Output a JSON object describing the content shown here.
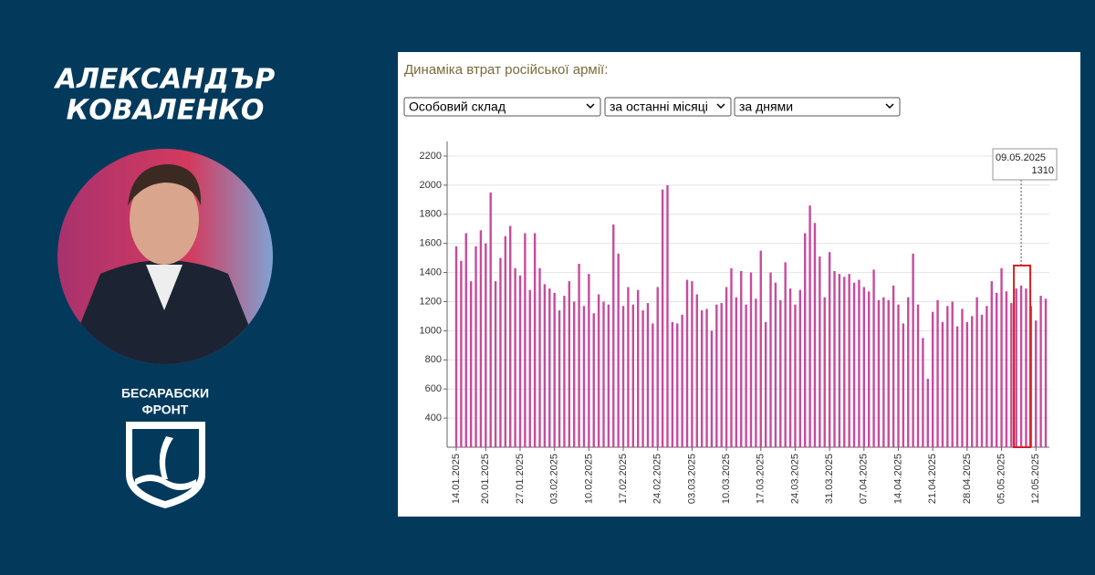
{
  "author": {
    "line1": "АЛЕКСАНДЪР",
    "line2": "КОВАЛЕНКО"
  },
  "logo": {
    "line1": "БЕСАРАБСКИ",
    "line2": "ФРОНТ"
  },
  "chart_data": {
    "type": "bar",
    "title": "Динаміка втрат російської армії:",
    "controls": [
      "Особовий склад",
      "за останні місяці",
      "за днями"
    ],
    "categories": [
      "14.01.2025",
      null,
      null,
      null,
      null,
      null,
      "20.01.2025",
      null,
      null,
      null,
      null,
      null,
      null,
      "27.01.2025",
      null,
      null,
      null,
      null,
      null,
      null,
      "03.02.2025",
      null,
      null,
      null,
      null,
      null,
      null,
      "10.02.2025",
      null,
      null,
      null,
      null,
      null,
      null,
      "17.02.2025",
      null,
      null,
      null,
      null,
      null,
      null,
      "24.02.2025",
      null,
      null,
      null,
      null,
      null,
      null,
      "03.03.2025",
      null,
      null,
      null,
      null,
      null,
      null,
      "10.03.2025",
      null,
      null,
      null,
      null,
      null,
      null,
      "17.03.2025",
      null,
      null,
      null,
      null,
      null,
      null,
      "24.03.2025",
      null,
      null,
      null,
      null,
      null,
      null,
      "31.03.2025",
      null,
      null,
      null,
      null,
      null,
      null,
      "07.04.2025",
      null,
      null,
      null,
      null,
      null,
      null,
      "14.04.2025",
      null,
      null,
      null,
      null,
      null,
      null,
      "21.04.2025",
      null,
      null,
      null,
      null,
      null,
      null,
      "28.04.2025",
      null,
      null,
      null,
      null,
      null,
      null,
      "05.05.2025",
      null,
      null,
      null,
      null,
      null,
      null,
      "12.05.2025",
      null,
      null
    ],
    "values": [
      1580,
      1480,
      1670,
      1340,
      1580,
      1690,
      1600,
      1950,
      1340,
      1500,
      1650,
      1720,
      1430,
      1380,
      1670,
      1280,
      1670,
      1430,
      1320,
      1290,
      1260,
      1140,
      1240,
      1340,
      1200,
      1460,
      1170,
      1390,
      1120,
      1250,
      1200,
      1180,
      1730,
      1530,
      1170,
      1300,
      1180,
      1280,
      1140,
      1190,
      1050,
      1300,
      1970,
      2000,
      1060,
      1050,
      1110,
      1350,
      1340,
      1250,
      1140,
      1150,
      1000,
      1180,
      1190,
      1300,
      1430,
      1230,
      1410,
      1180,
      1400,
      1220,
      1550,
      1060,
      1400,
      1330,
      1210,
      1470,
      1290,
      1180,
      1280,
      1670,
      1860,
      1740,
      1510,
      1230,
      1540,
      1410,
      1390,
      1370,
      1390,
      1330,
      1350,
      1300,
      1270,
      1420,
      1210,
      1230,
      1210,
      1310,
      1180,
      1050,
      1230,
      1530,
      1180,
      950,
      670,
      1130,
      1210,
      1060,
      1170,
      1200,
      1030,
      1150,
      1060,
      1100,
      1230,
      1110,
      1170,
      1340,
      1260,
      1430,
      1270,
      1190,
      1290,
      1310,
      1290,
      1170,
      1070,
      1240,
      1220
    ],
    "color": "#c64b9d",
    "ylim": [
      200,
      2300
    ],
    "yticks": [
      400,
      600,
      800,
      1000,
      1200,
      1400,
      1600,
      1800,
      2000,
      2200
    ],
    "grid": true,
    "tooltip": {
      "date": "09.05.2025",
      "index": 115
    }
  }
}
